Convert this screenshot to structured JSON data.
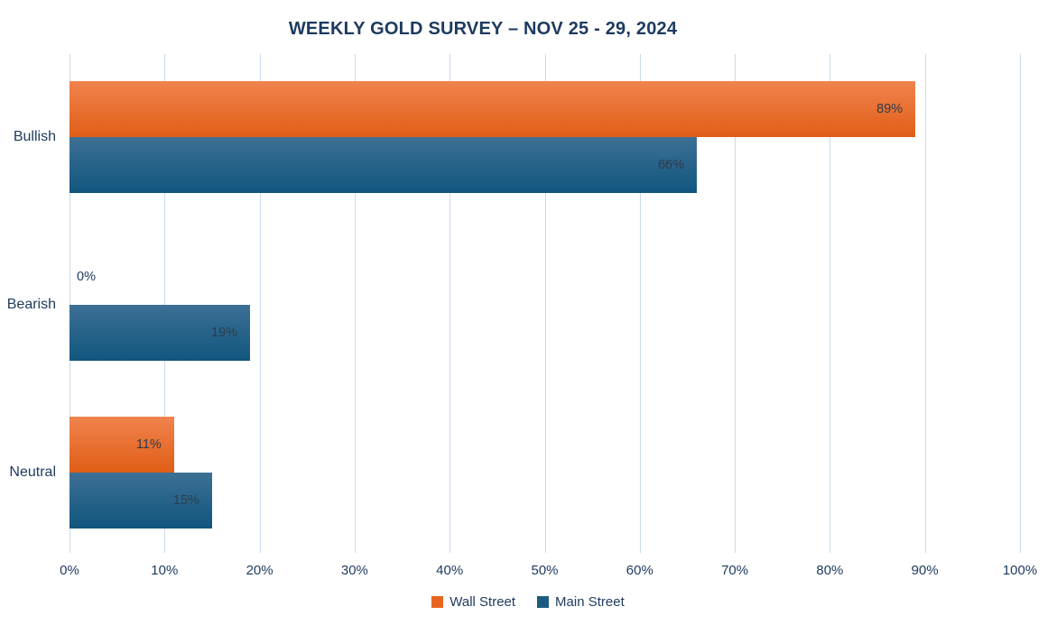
{
  "title": "WEEKLY GOLD SURVEY – NOV 25 - 29, 2024",
  "chart_data": {
    "type": "bar",
    "orientation": "horizontal",
    "title": "WEEKLY GOLD SURVEY – NOV 25 - 29, 2024",
    "categories": [
      "Bullish",
      "Bearish",
      "Neutral"
    ],
    "series": [
      {
        "name": "Wall Street",
        "values": [
          89,
          0,
          11
        ],
        "labels": [
          "89%",
          "0%",
          "11%"
        ],
        "swatch_color": "#e9641f",
        "gradient_top": "#f1834e",
        "gradient_bottom": "#e05e16"
      },
      {
        "name": "Main Street",
        "values": [
          66,
          19,
          15
        ],
        "labels": [
          "66%",
          "19%",
          "15%"
        ],
        "swatch_color": "#1c5c80",
        "gradient_top": "#3e7095",
        "gradient_bottom": "#10567e"
      }
    ],
    "xlim": [
      0,
      100
    ],
    "x_ticks": [
      "0%",
      "10%",
      "20%",
      "30%",
      "40%",
      "50%",
      "60%",
      "70%",
      "80%",
      "90%",
      "100%"
    ],
    "grid": "vertical",
    "gridline_color": "#c9daee",
    "text_color": "#1d3a5f",
    "value_label_color": "#2e3b49",
    "legend_position": "bottom"
  }
}
